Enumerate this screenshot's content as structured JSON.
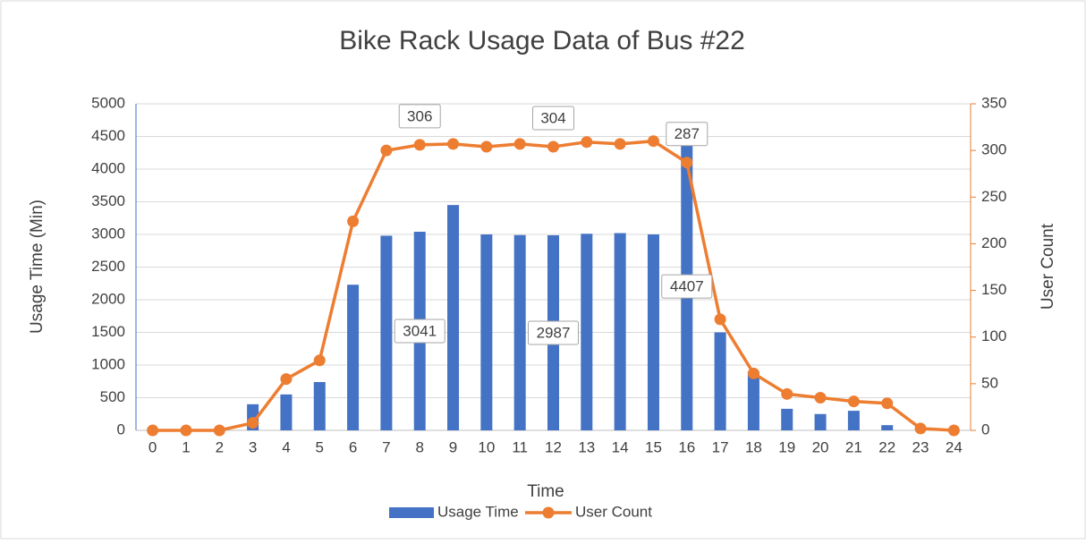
{
  "chart_data": {
    "type": "bar-line",
    "title": "Bike Rack Usage Data of Bus #22",
    "x_label": "Time",
    "y_label": "Usage Time (Min)",
    "y2_label": "User Count",
    "categories": [
      "0",
      "1",
      "2",
      "3",
      "4",
      "5",
      "6",
      "7",
      "8",
      "9",
      "10",
      "11",
      "12",
      "13",
      "14",
      "15",
      "16",
      "17",
      "18",
      "19",
      "20",
      "21",
      "22",
      "23",
      "24"
    ],
    "series": [
      {
        "name": "Usage Time",
        "type": "bar",
        "color": "#4472c4",
        "labeled": [
          8,
          12,
          16
        ],
        "values": [
          0,
          0,
          0,
          400,
          550,
          740,
          2230,
          2980,
          3041,
          3450,
          3000,
          2990,
          2987,
          3010,
          3020,
          3000,
          4407,
          1500,
          900,
          330,
          250,
          300,
          80,
          0,
          0
        ]
      },
      {
        "name": "User Count",
        "type": "line",
        "axis": "y2",
        "color": "#ed7d31",
        "labeled": [
          8,
          12,
          16
        ],
        "values": [
          0,
          0,
          0,
          8,
          55,
          75,
          224,
          300,
          306,
          307,
          304,
          307,
          304,
          309,
          307,
          310,
          287,
          119,
          61,
          39,
          35,
          31,
          29,
          2,
          0
        ]
      }
    ],
    "ylim": [
      0,
      5000
    ],
    "yticks": [
      0,
      500,
      1000,
      1500,
      2000,
      2500,
      3000,
      3500,
      4000,
      4500,
      5000
    ],
    "y2lim": [
      0,
      350
    ],
    "y2ticks": [
      0,
      50,
      100,
      150,
      200,
      250,
      300,
      350
    ],
    "grid": true,
    "legend": "bottom"
  }
}
